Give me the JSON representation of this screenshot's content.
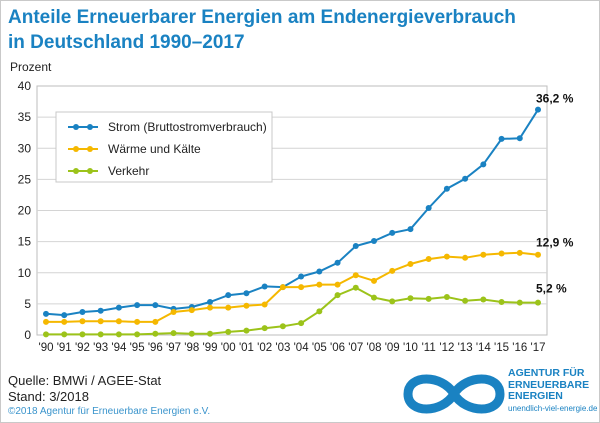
{
  "title_line1": "Anteile Erneuerbarer Energien am Endenergieverbrauch",
  "title_line2": "in Deutschland 1990–2017",
  "source": "Quelle: BMWi / AGEE-Stat",
  "stand": "Stand: 3/2018",
  "copyright": "©2018 Agentur für Erneuerbare Energien e.V.",
  "logo": {
    "line1": "AGENTUR FÜR",
    "line2": "ERNEUERBARE",
    "line3": "ENERGIEN",
    "url": "unendlich-viel-energie.de"
  },
  "colors": {
    "strom": "#1a82c2",
    "waerme": "#f5b800",
    "verkehr": "#9cc31a",
    "title": "#1a82c2"
  },
  "chart_data": {
    "type": "line",
    "title": "Anteile Erneuerbarer Energien am Endenergieverbrauch in Deutschland 1990–2017",
    "ylabel": "Prozent",
    "xlabel": "",
    "ylim": [
      0,
      40
    ],
    "yticks": [
      "0",
      "5",
      "10",
      "15",
      "20",
      "25",
      "30",
      "35",
      "40"
    ],
    "grid": true,
    "legend_position": "top-left",
    "categories": [
      "'90",
      "'91",
      "'92",
      "'93",
      "'94",
      "'95",
      "'96",
      "'97",
      "'98",
      "'99",
      "'00",
      "'01",
      "'02",
      "'03",
      "'04",
      "'05",
      "'06",
      "'07",
      "'08",
      "'09",
      "'10",
      "'11",
      "'12",
      "'13",
      "'14",
      "'15",
      "'16",
      "'17"
    ],
    "series": [
      {
        "name": "Strom (Bruttostromverbrauch)",
        "color": "#1a82c2",
        "end_label": "36,2 %",
        "values": [
          3.4,
          3.2,
          3.7,
          3.9,
          4.4,
          4.8,
          4.8,
          4.2,
          4.5,
          5.3,
          6.4,
          6.7,
          7.8,
          7.7,
          9.4,
          10.2,
          11.6,
          14.3,
          15.1,
          16.4,
          17.0,
          20.4,
          23.5,
          25.1,
          27.4,
          31.5,
          31.6,
          36.2
        ]
      },
      {
        "name": "Wärme und Kälte",
        "color": "#f5b800",
        "end_label": "12,9 %",
        "values": [
          2.1,
          2.1,
          2.2,
          2.2,
          2.2,
          2.1,
          2.1,
          3.7,
          4.0,
          4.4,
          4.4,
          4.7,
          4.9,
          7.7,
          7.7,
          8.1,
          8.1,
          9.6,
          8.7,
          10.3,
          11.4,
          12.2,
          12.6,
          12.4,
          12.9,
          13.1,
          13.2,
          12.9
        ]
      },
      {
        "name": "Verkehr",
        "color": "#9cc31a",
        "end_label": "5,2 %",
        "values": [
          0.1,
          0.1,
          0.1,
          0.1,
          0.1,
          0.1,
          0.2,
          0.3,
          0.2,
          0.2,
          0.5,
          0.7,
          1.1,
          1.4,
          1.9,
          3.8,
          6.4,
          7.6,
          6.0,
          5.4,
          5.9,
          5.8,
          6.1,
          5.5,
          5.7,
          5.3,
          5.2,
          5.2
        ]
      }
    ]
  }
}
